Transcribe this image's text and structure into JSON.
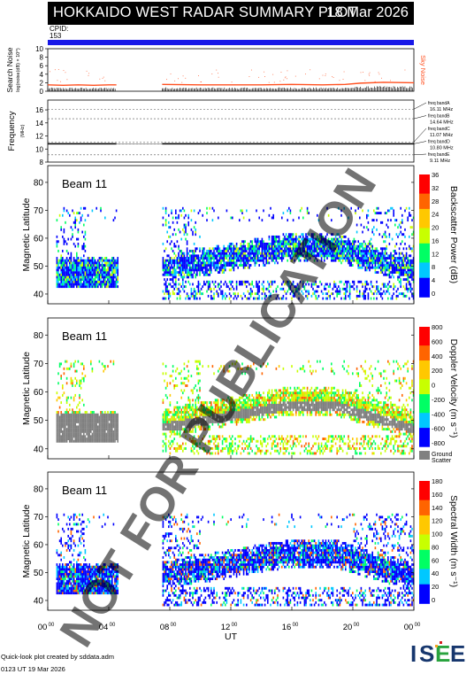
{
  "header": {
    "title": "HOKKAIDO WEST RADAR SUMMARY PLOT",
    "date": "18 Mar 2026",
    "cpid_label": "CPID:",
    "cpid_value": "153",
    "cpid_color": "#1818e8"
  },
  "colors": {
    "plasma": [
      "#0000ff",
      "#00c8ff",
      "#00ff64",
      "#c8ff00",
      "#ffc800",
      "#ff6400",
      "#ff0000"
    ],
    "ground": "#808080",
    "noise": "#ff5020"
  },
  "chart_data": [
    {
      "type": "line",
      "panel": "noise",
      "ylabel": "Search Noise",
      "sublabel": "log(noise(dB) × 10^)",
      "series_label": "Sky Noise",
      "ylim": [
        0,
        10
      ],
      "yticks": [
        "0",
        "2",
        "4",
        "6",
        "8",
        "10"
      ],
      "xlim": [
        0,
        24
      ],
      "segments": [
        {
          "x": [
            0,
            1,
            2,
            3,
            4,
            4.5
          ],
          "y": [
            1.5,
            1.4,
            1.5,
            1.4,
            1.5,
            1.5
          ]
        },
        {
          "x": [
            7.5,
            10,
            12,
            14,
            16,
            18,
            19.5,
            20.5,
            22,
            24
          ],
          "y": [
            1.6,
            1.5,
            1.5,
            1.5,
            1.6,
            1.5,
            1.6,
            1.9,
            2.1,
            2.0
          ]
        }
      ]
    },
    {
      "type": "line",
      "panel": "frequency",
      "ylabel": "Frequency",
      "sublabel": "(MHz)",
      "ylim": [
        8,
        17.5
      ],
      "yticks": [
        "8",
        "10",
        "12",
        "14",
        "16"
      ],
      "xlim": [
        0,
        24
      ],
      "bands": [
        {
          "label": "freq bandA",
          "value": "16.11 MHz",
          "mhz": 16.11
        },
        {
          "label": "freq bandB",
          "value": "14.64 MHz",
          "mhz": 14.64
        },
        {
          "label": "freq bandC",
          "value": "11.07 MHz",
          "mhz": 11.07
        },
        {
          "label": "freq bandD",
          "value": "10.80 MHz",
          "mhz": 10.8
        },
        {
          "label": "freq bandE",
          "value": "9.11 MHz",
          "mhz": 9.11
        }
      ],
      "operating_mhz": 10.8
    },
    {
      "type": "heatmap",
      "panel": "power",
      "beam": "Beam 11",
      "ylabel": "Magnetic Latitude",
      "ylim": [
        36.5,
        86
      ],
      "yticks": [
        "40",
        "50",
        "60",
        "70",
        "80"
      ],
      "xlim": [
        0,
        24
      ],
      "colorbar_label": "Backscatter Power (dB)",
      "colorbar_ticks": [
        "0",
        "4",
        "8",
        "12",
        "16",
        "20",
        "24",
        "28",
        "32",
        "36"
      ],
      "scale": "power"
    },
    {
      "type": "heatmap",
      "panel": "velocity",
      "beam": "Beam 11",
      "ylabel": "Magnetic Latitude",
      "ylim": [
        36.5,
        86
      ],
      "yticks": [
        "40",
        "50",
        "60",
        "70",
        "80"
      ],
      "xlim": [
        0,
        24
      ],
      "colorbar_label": "Doppler Velocity (m s⁻¹)",
      "colorbar_ticks": [
        "-800",
        "-600",
        "-400",
        "-200",
        "0",
        "200",
        "400",
        "600",
        "800"
      ],
      "ground_label": "Ground",
      "ground_label2": "Scatter",
      "scale": "velocity"
    },
    {
      "type": "heatmap",
      "panel": "width",
      "beam": "Beam 11",
      "ylabel": "Magnetic Latitude",
      "ylim": [
        36.5,
        86
      ],
      "yticks": [
        "40",
        "50",
        "60",
        "70",
        "80"
      ],
      "xlim": [
        0,
        24
      ],
      "colorbar_label": "Spectral Width (m s⁻¹)",
      "colorbar_ticks": [
        "0",
        "20",
        "40",
        "60",
        "80",
        "100",
        "120",
        "140",
        "160",
        "180"
      ],
      "scale": "width"
    }
  ],
  "x_axis": {
    "ticks": [
      {
        "h": 0,
        "label": "00",
        "sup": "00"
      },
      {
        "h": 4,
        "label": "04",
        "sup": "00"
      },
      {
        "h": 8,
        "label": "08",
        "sup": "00"
      },
      {
        "h": 12,
        "label": "12",
        "sup": "00"
      },
      {
        "h": 16,
        "label": "16",
        "sup": "00"
      },
      {
        "h": 20,
        "label": "20",
        "sup": "00"
      },
      {
        "h": 24,
        "label": "00",
        "sup": "00"
      }
    ],
    "label": "UT"
  },
  "watermark": "NOT FOR PUBLICATION",
  "footer": {
    "credit": "Quick-look plot created by sddata.adm",
    "time": "0123 UT 19 Mar 2026"
  },
  "logo_text": "ISEE"
}
